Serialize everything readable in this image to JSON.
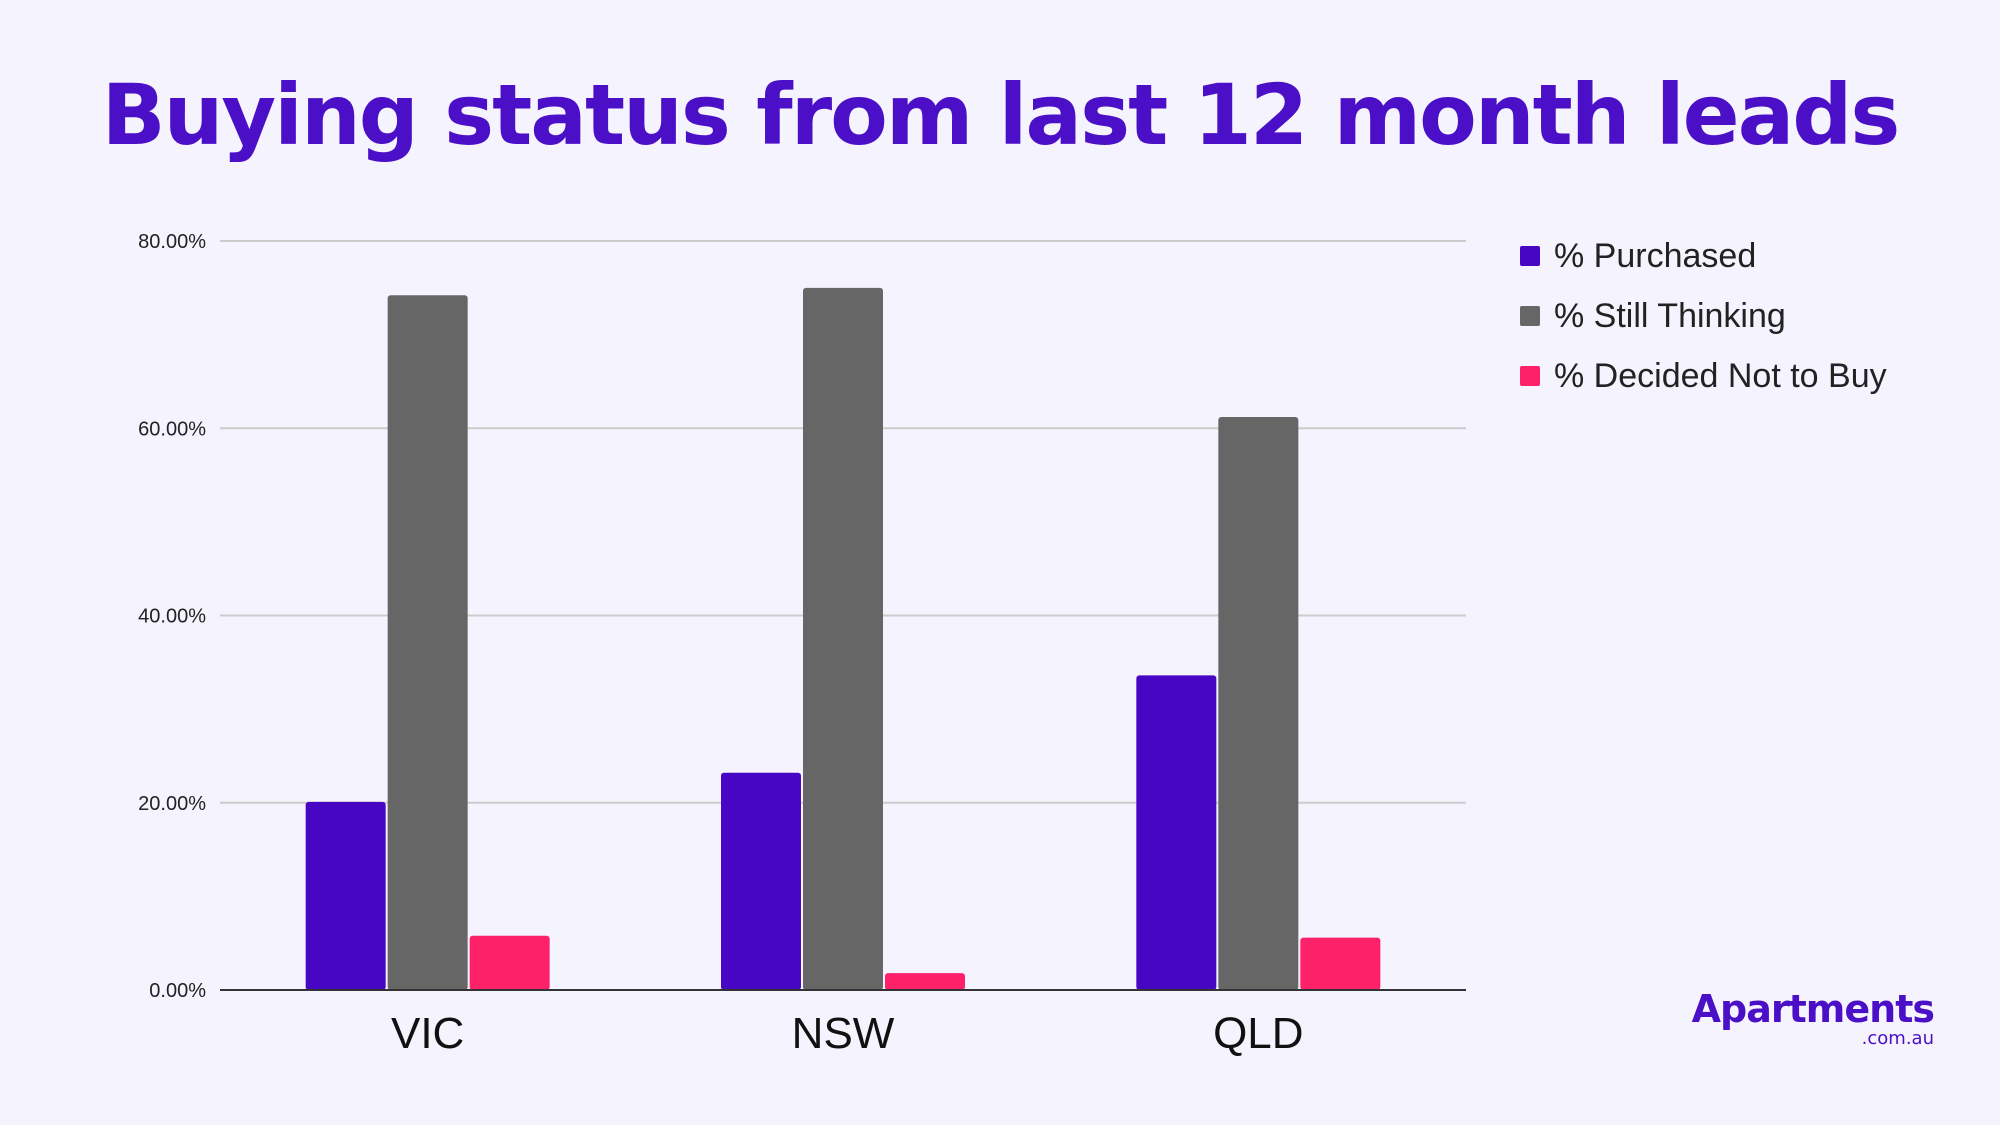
{
  "colors": {
    "background": "#f5f3fd",
    "title": "#4a0fc6",
    "brand": "#4a0fc6"
  },
  "logo": {
    "main": "Apartments",
    "sub": ".com.au"
  },
  "chart_data": {
    "type": "bar",
    "title": "Buying status from last 12 month leads",
    "xlabel": "",
    "ylabel": "",
    "categories": [
      "VIC",
      "NSW",
      "QLD"
    ],
    "series": [
      {
        "name": "% Purchased",
        "color": "#4705c4",
        "values": [
          20.1,
          23.2,
          33.6
        ]
      },
      {
        "name": "% Still Thinking",
        "color": "#666666",
        "values": [
          74.2,
          75.0,
          61.2
        ]
      },
      {
        "name": "% Decided Not to Buy",
        "color": "#fc2169",
        "values": [
          5.8,
          1.8,
          5.6
        ]
      }
    ],
    "ylim": [
      0,
      80
    ],
    "yticks": [
      {
        "value": 0,
        "label": "0.00%"
      },
      {
        "value": 20,
        "label": "20.00%"
      },
      {
        "value": 40,
        "label": "40.00%"
      },
      {
        "value": 60,
        "label": "60.00%"
      },
      {
        "value": 80,
        "label": "80.00%"
      }
    ],
    "grid": true,
    "legend": "right"
  }
}
